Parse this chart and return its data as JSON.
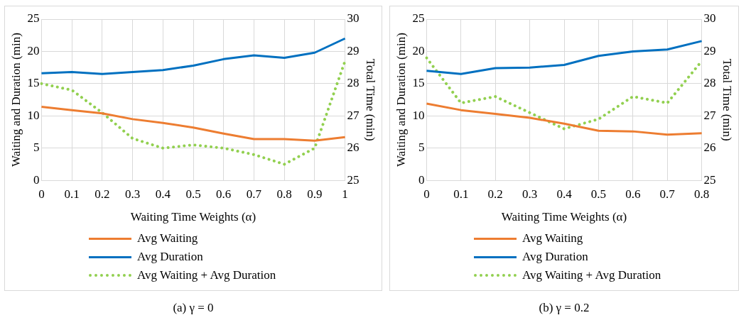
{
  "chart_data": [
    {
      "type": "line",
      "xlabel": "Waiting Time Weights (α)",
      "ylabel": "Waiting and Duration (min)",
      "y2label": "Total Time (min)",
      "categories": [
        "0",
        "0.1",
        "0.2",
        "0.3",
        "0.4",
        "0.5",
        "0.6",
        "0.7",
        "0.8",
        "0.9",
        "1"
      ],
      "series": [
        {
          "name": "Avg Waiting",
          "color": "#ed7d31",
          "values": [
            11.4,
            10.9,
            10.4,
            9.5,
            8.9,
            8.2,
            7.25,
            6.4,
            6.4,
            6.15,
            6.7
          ]
        },
        {
          "name": "Avg Duration",
          "color": "#0070c0",
          "values": [
            16.6,
            16.8,
            16.5,
            16.8,
            17.1,
            17.8,
            18.8,
            19.4,
            19.0,
            19.8,
            22.0
          ]
        },
        {
          "name": "Avg Waiting + Avg Duration",
          "color": "#92d050",
          "axis": "y2",
          "line_style": "dotted",
          "values": [
            28.0,
            27.8,
            27.1,
            26.3,
            26.0,
            26.1,
            26.0,
            25.8,
            25.5,
            26.0,
            28.7
          ]
        }
      ],
      "ylim": [
        0,
        25
      ],
      "yticks": [
        0,
        5,
        10,
        15,
        20,
        25
      ],
      "y2lim": [
        25,
        30
      ],
      "y2ticks": [
        25,
        26,
        27,
        28,
        29,
        30
      ],
      "grid": true,
      "legend": "bottom",
      "marker": "none",
      "line_style": "solid",
      "annotations": [
        "(a) γ  = 0"
      ]
    },
    {
      "type": "line",
      "xlabel": "Waiting Time Weights (α)",
      "ylabel": "Waiting and Duration (min)",
      "y2label": "Total Time (min)",
      "categories": [
        "0",
        "0.1",
        "0.2",
        "0.3",
        "0.4",
        "0.5",
        "0.6",
        "0.7",
        "0.8"
      ],
      "series": [
        {
          "name": "Avg Waiting",
          "color": "#ed7d31",
          "values": [
            11.9,
            10.9,
            10.3,
            9.7,
            8.8,
            7.7,
            7.6,
            7.1,
            7.3
          ]
        },
        {
          "name": "Avg Duration",
          "color": "#0070c0",
          "values": [
            17.0,
            16.5,
            17.4,
            17.5,
            17.9,
            19.3,
            20.0,
            20.3,
            21.6
          ]
        },
        {
          "name": "Avg Waiting + Avg Duration",
          "color": "#92d050",
          "axis": "y2",
          "line_style": "dotted",
          "values": [
            28.8,
            27.4,
            27.6,
            27.1,
            26.6,
            26.9,
            27.6,
            27.4,
            28.7
          ]
        }
      ],
      "ylim": [
        0,
        25
      ],
      "yticks": [
        0,
        5,
        10,
        15,
        20,
        25
      ],
      "y2lim": [
        25,
        30
      ],
      "y2ticks": [
        25,
        26,
        27,
        28,
        29,
        30
      ],
      "grid": true,
      "legend": "bottom",
      "marker": "none",
      "line_style": "solid",
      "annotations": [
        "(b) γ  = 0.2"
      ]
    }
  ]
}
